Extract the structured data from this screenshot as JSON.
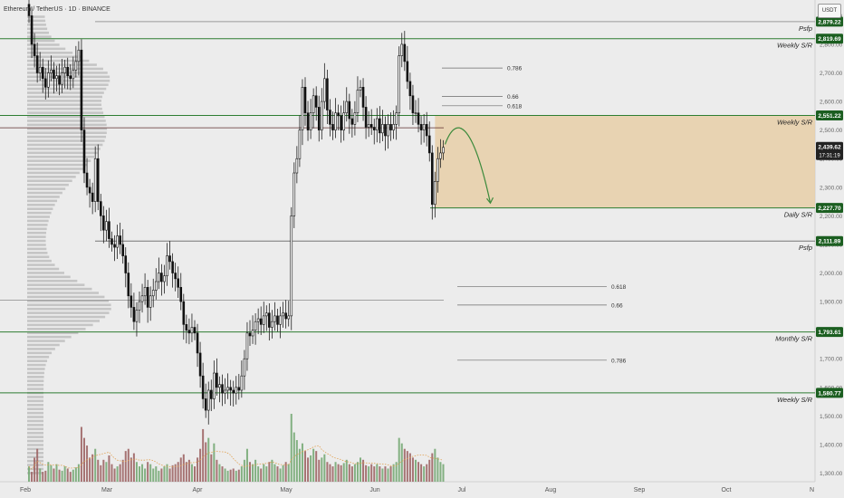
{
  "header": {
    "symbol_text": "Ethereum / TetherUS · 1D · BINANCE"
  },
  "currency_badge": {
    "label": "USDT"
  },
  "colors": {
    "background": "#ececec",
    "up": "#000000",
    "down": "#000000",
    "vol_up": "#70a66e",
    "vol_down": "#9a5e5e",
    "support_line": "#2e7d32",
    "zone_fill": "#e8cfa8",
    "tag_green": "#1b5e20",
    "price_tag": "#222222",
    "arrow": "#3c8a3c"
  },
  "chart_data": {
    "type": "candlestick",
    "x_axis": {
      "labels": [
        "Feb",
        "Mar",
        "Apr",
        "May",
        "Jun",
        "Jul",
        "Aug",
        "Sep",
        "Oct",
        "N"
      ]
    },
    "y_axis": {
      "range": [
        1270,
        2955
      ],
      "ticks": [
        "2,900.00",
        "2,800.00",
        "2,700.00",
        "2,600.00",
        "2,500.00",
        "2,400.00",
        "2,300.00",
        "2,200.00",
        "2,100.00",
        "2,000.00",
        "1,900.00",
        "1,800.00",
        "1,700.00",
        "1,600.00",
        "1,500.00",
        "1,400.00",
        "1,300.00"
      ],
      "tick_values": [
        2900,
        2800,
        2700,
        2600,
        2500,
        2400,
        2300,
        2200,
        2100,
        2000,
        1900,
        1800,
        1700,
        1600,
        1500,
        1400,
        1300
      ]
    },
    "levels": [
      {
        "label": "Psfp",
        "price_label": "2,879.22",
        "value": 2879.22
      },
      {
        "label": "Weekly S/R",
        "price_label": "2,819.69",
        "value": 2819.69
      },
      {
        "label": "Weekly S/R",
        "price_label": "2,551.22",
        "value": 2551.22
      },
      {
        "label": "Daily S/R",
        "price_label": "2,227.70",
        "value": 2227.7
      },
      {
        "label": "Psfp",
        "price_label": "2,111.89",
        "value": 2111.89
      },
      {
        "label": "Monthly S/R",
        "price_label": "1,793.61",
        "value": 1793.61
      },
      {
        "label": "Weekly S/R",
        "price_label": "1,580.77",
        "value": 1580.77
      }
    ],
    "current_price": {
      "price_label": "2,439.62",
      "countdown": "17:31:19",
      "value": 2439.62
    },
    "fib_levels": [
      {
        "label": "0.786",
        "value": 2717
      },
      {
        "label": "0.66",
        "value": 2618
      },
      {
        "label": "0.618",
        "value": 2585
      },
      {
        "label": "0.618",
        "value": 1952
      },
      {
        "label": "0.66",
        "value": 1888
      },
      {
        "label": "0.786",
        "value": 1695
      }
    ],
    "zone": {
      "from": 2227.7,
      "to": 2551.22
    },
    "other_lines": [
      {
        "value": 2508
      },
      {
        "value": 1905
      }
    ],
    "projection": {
      "start": 2450,
      "peak": 2510,
      "end": 2232
    },
    "daily_closes": [
      2900,
      2800,
      2760,
      2700,
      2720,
      2680,
      2650,
      2700,
      2710,
      2680,
      2690,
      2660,
      2700,
      2720,
      2690,
      2680,
      2710,
      2740,
      2780,
      2500,
      2350,
      2300,
      2280,
      2250,
      2400,
      2250,
      2200,
      2150,
      2180,
      2120,
      2100,
      2090,
      2130,
      2100,
      2060,
      2000,
      1920,
      1880,
      1830,
      1870,
      1900,
      1920,
      1950,
      1880,
      1920,
      1940,
      1970,
      2000,
      1970,
      1990,
      2060,
      2040,
      2000,
      1980,
      1950,
      1900,
      1820,
      1800,
      1790,
      1810,
      1790,
      1720,
      1640,
      1560,
      1520,
      1590,
      1560,
      1650,
      1600,
      1610,
      1580,
      1590,
      1600,
      1590,
      1580,
      1600,
      1590,
      1640,
      1700,
      1790,
      1780,
      1800,
      1830,
      1840,
      1820,
      1850,
      1860,
      1810,
      1830,
      1850,
      1820,
      1850,
      1860,
      1840,
      1850,
      2200,
      2350,
      2400,
      2500,
      2650,
      2560,
      2500,
      2560,
      2620,
      2580,
      2500,
      2600,
      2680,
      2570,
      2520,
      2500,
      2560,
      2550,
      2500,
      2560,
      2600,
      2540,
      2520,
      2560,
      2640,
      2650,
      2580,
      2510,
      2520,
      2510,
      2500,
      2540,
      2490,
      2520,
      2480,
      2520,
      2500,
      2520,
      2560,
      2760,
      2800,
      2740,
      2670,
      2620,
      2560,
      2560,
      2520,
      2500,
      2520,
      2480,
      2420,
      2240,
      2320,
      2400,
      2420,
      2439.62
    ],
    "volume": [
      14,
      9,
      22,
      30,
      12,
      9,
      10,
      18,
      15,
      12,
      16,
      11,
      10,
      14,
      12,
      9,
      11,
      13,
      16,
      50,
      40,
      33,
      22,
      25,
      30,
      20,
      15,
      20,
      18,
      24,
      16,
      12,
      14,
      16,
      20,
      28,
      30,
      22,
      26,
      18,
      14,
      16,
      12,
      18,
      16,
      12,
      14,
      10,
      12,
      14,
      16,
      12,
      15,
      16,
      18,
      22,
      25,
      18,
      20,
      16,
      14,
      22,
      30,
      48,
      36,
      40,
      25,
      35,
      20,
      16,
      14,
      12,
      10,
      11,
      12,
      10,
      11,
      14,
      20,
      30,
      18,
      16,
      20,
      14,
      12,
      16,
      14,
      18,
      20,
      16,
      14,
      12,
      15,
      18,
      16,
      62,
      45,
      38,
      30,
      35,
      28,
      22,
      24,
      30,
      28,
      20,
      22,
      25,
      18,
      16,
      14,
      18,
      16,
      15,
      17,
      20,
      16,
      14,
      16,
      18,
      22,
      20,
      15,
      14,
      16,
      14,
      16,
      14,
      12,
      14,
      12,
      14,
      16,
      18,
      40,
      35,
      30,
      28,
      26,
      22,
      20,
      18,
      16,
      14,
      16,
      20,
      26,
      30,
      22,
      18,
      16
    ]
  }
}
